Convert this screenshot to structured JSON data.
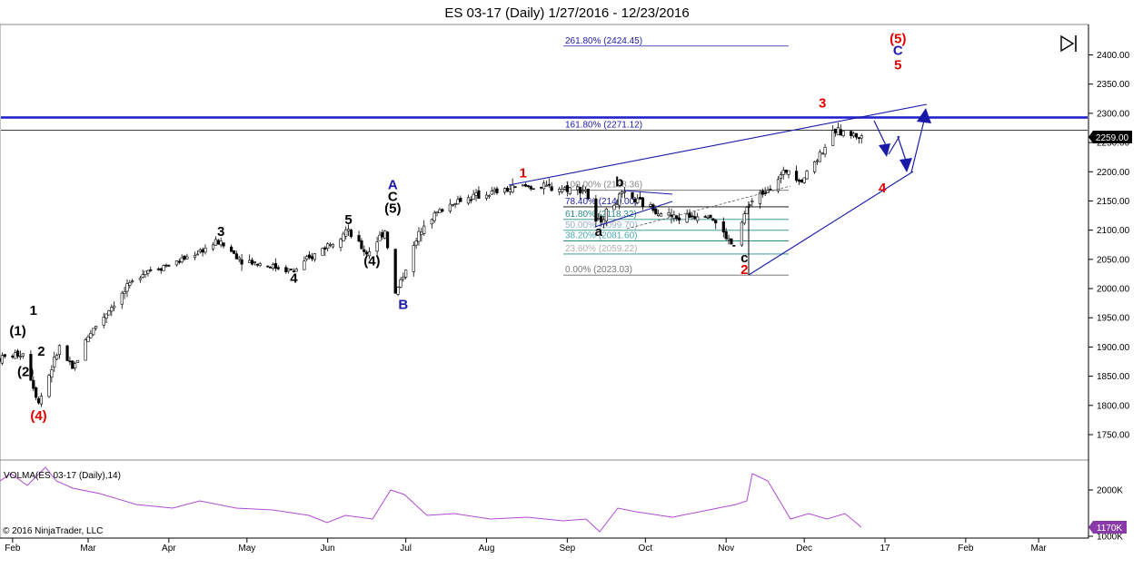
{
  "chart_data": [
    {
      "type": "candlestick",
      "title": "ES 03-17 (Daily)  1/27/2016 - 12/23/2016",
      "ylim": [
        1700,
        2450
      ],
      "y_ticks": [
        "2400.00",
        "2350.00",
        "2300.00",
        "2250.00",
        "2200.00",
        "2150.00",
        "2100.00",
        "2050.00",
        "2000.00",
        "1950.00",
        "1900.00",
        "1850.00",
        "1800.00",
        "1750.00"
      ],
      "x_ticks": [
        "Feb",
        "Mar",
        "Apr",
        "May",
        "Jun",
        "Jul",
        "Aug",
        "Sep",
        "Oct",
        "Nov",
        "Dec",
        "17",
        "Feb",
        "Mar"
      ],
      "last_price": "2259.00",
      "price_path": [
        {
          "date": "2016-01-27",
          "close": 1880
        },
        {
          "date": "2016-02-05",
          "close": 1890
        },
        {
          "date": "2016-02-11",
          "close": 1805
        },
        {
          "date": "2016-02-19",
          "close": 1900
        },
        {
          "date": "2016-02-24",
          "close": 1860
        },
        {
          "date": "2016-03-01",
          "close": 1920
        },
        {
          "date": "2016-03-11",
          "close": 1975
        },
        {
          "date": "2016-03-22",
          "close": 2030
        },
        {
          "date": "2016-04-04",
          "close": 2045
        },
        {
          "date": "2016-04-20",
          "close": 2080
        },
        {
          "date": "2016-04-29",
          "close": 2050
        },
        {
          "date": "2016-05-19",
          "close": 2030
        },
        {
          "date": "2016-06-08",
          "close": 2100
        },
        {
          "date": "2016-06-16",
          "close": 2060
        },
        {
          "date": "2016-06-23",
          "close": 2100
        },
        {
          "date": "2016-06-27",
          "close": 1990
        },
        {
          "date": "2016-07-08",
          "close": 2115
        },
        {
          "date": "2016-07-20",
          "close": 2150
        },
        {
          "date": "2016-08-15",
          "close": 2175
        },
        {
          "date": "2016-09-08",
          "close": 2170
        },
        {
          "date": "2016-09-12",
          "close": 2110
        },
        {
          "date": "2016-09-22",
          "close": 2160
        },
        {
          "date": "2016-10-13",
          "close": 2120
        },
        {
          "date": "2016-10-25",
          "close": 2130
        },
        {
          "date": "2016-11-04",
          "close": 2070
        },
        {
          "date": "2016-11-09",
          "close": 2140
        },
        {
          "date": "2016-11-25",
          "close": 2205
        },
        {
          "date": "2016-11-30",
          "close": 2185
        },
        {
          "date": "2016-12-13",
          "close": 2270
        },
        {
          "date": "2016-12-23",
          "close": 2259
        }
      ],
      "horizontal_lines": [
        {
          "price": 2293
        },
        {
          "price": 2271.12
        }
      ],
      "fibonacci_upper": [
        {
          "label": "261.80% (2424.45)",
          "price": 2424.45
        },
        {
          "label": "161.80% (2271.12)",
          "price": 2271.12
        }
      ],
      "fibonacci_retracement": [
        {
          "label": "100.00% (2168.36)",
          "price": 2168.36
        },
        {
          "label": "78.40% (2140.00)",
          "price": 2140.0
        },
        {
          "label": "61.80% (2118.32)",
          "price": 2118.32
        },
        {
          "label": "50.00% (2099.70)",
          "price": 2099.7
        },
        {
          "label": "38.20% (2081.60)",
          "price": 2081.6
        },
        {
          "label": "23.60% (2059.22)",
          "price": 2059.22
        },
        {
          "label": "0.00% (2023.03)",
          "price": 2023.03
        }
      ],
      "wave_labels": [
        {
          "text": "(4)",
          "date": "2016-02-11",
          "price": 1775,
          "color": "#e00000"
        },
        {
          "text": "(1)",
          "date": "2016-02-03",
          "price": 1920,
          "color": "#000000"
        },
        {
          "text": "(2)",
          "date": "2016-02-06",
          "price": 1850,
          "color": "#000000"
        },
        {
          "text": "1",
          "date": "2016-02-09",
          "price": 1955,
          "color": "#000000"
        },
        {
          "text": "2",
          "date": "2016-02-12",
          "price": 1885,
          "color": "#000000"
        },
        {
          "text": "3",
          "date": "2016-04-21",
          "price": 2090,
          "color": "#000000"
        },
        {
          "text": "4",
          "date": "2016-05-19",
          "price": 2010,
          "color": "#000000"
        },
        {
          "text": "5",
          "date": "2016-06-09",
          "price": 2110,
          "color": "#000000"
        },
        {
          "text": "(4)",
          "date": "2016-06-18",
          "price": 2040,
          "color": "#000000"
        },
        {
          "text": "A",
          "date": "2016-06-26",
          "price": 2170,
          "color": "#1a1aa8"
        },
        {
          "text": "C",
          "date": "2016-06-26",
          "price": 2150,
          "color": "#000000"
        },
        {
          "text": "(5)",
          "date": "2016-06-26",
          "price": 2130,
          "color": "#000000"
        },
        {
          "text": "B",
          "date": "2016-06-30",
          "price": 1965,
          "color": "#1a1aa8"
        },
        {
          "text": "1",
          "date": "2016-08-15",
          "price": 2190,
          "color": "#e00000"
        },
        {
          "text": "b",
          "date": "2016-09-21",
          "price": 2175,
          "color": "#000000"
        },
        {
          "text": "a",
          "date": "2016-09-13",
          "price": 2090,
          "color": "#000000"
        },
        {
          "text": "c",
          "date": "2016-11-08",
          "price": 2045,
          "color": "#000000"
        },
        {
          "text": "2",
          "date": "2016-11-08",
          "price": 2025,
          "color": "#e00000"
        },
        {
          "text": "3",
          "date": "2016-12-08",
          "price": 2310,
          "color": "#e00000"
        },
        {
          "text": "4",
          "date": "2016-12-31",
          "price": 2165,
          "color": "#e00000"
        },
        {
          "text": "(5)",
          "date": "2017-01-06",
          "price": 2420,
          "color": "#e00000"
        },
        {
          "text": "C",
          "date": "2017-01-06",
          "price": 2400,
          "color": "#1a1aa8"
        },
        {
          "text": "5",
          "date": "2017-01-06",
          "price": 2375,
          "color": "#e00000"
        }
      ],
      "annotations": [
        "© 2016 NinjaTrader, LLC"
      ]
    },
    {
      "type": "line",
      "title": "VOLMA(ES 03-17 (Daily),14)",
      "y_ticks": [
        "2000K",
        "1000K"
      ],
      "last_value": "1170K",
      "color": "#b04bd0"
    }
  ],
  "colors": {
    "candle_up": "#ffffff",
    "candle_down": "#000000",
    "wave_red": "#e00000",
    "wave_blue": "#1a1aa8",
    "fib_text": "#1a1aa8",
    "volma": "#b04bd0",
    "hline": "#2222cc"
  },
  "icons": [
    "collapse-right-icon"
  ]
}
